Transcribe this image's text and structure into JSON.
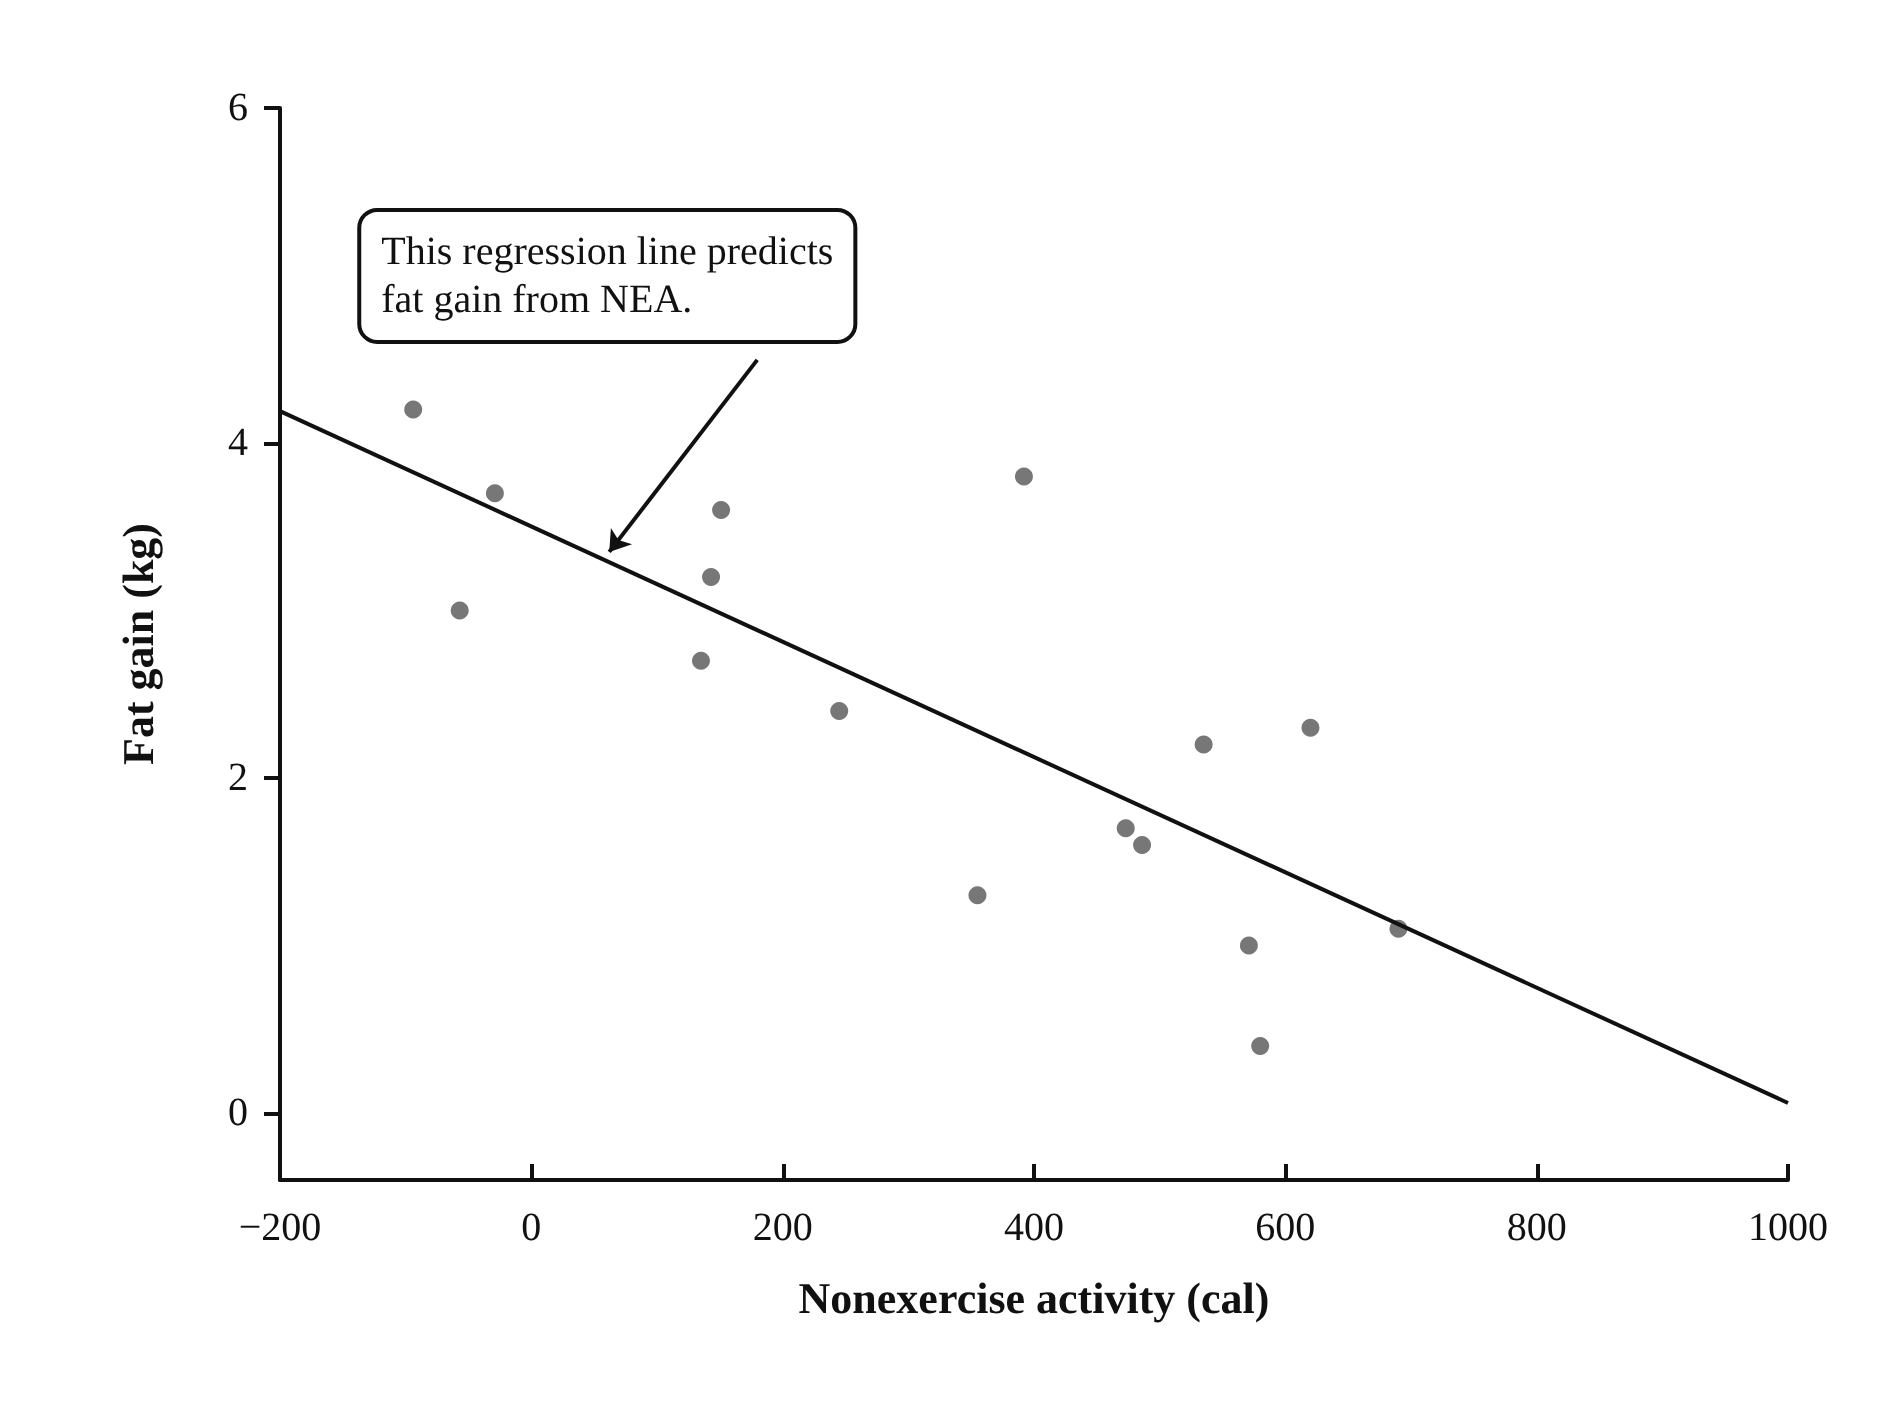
{
  "chart_data": {
    "type": "scatter",
    "xlabel": "Nonexercise activity (cal)",
    "ylabel": "Fat gain (kg)",
    "x": [
      -94,
      -57,
      -29,
      135,
      143,
      151,
      245,
      355,
      392,
      473,
      486,
      535,
      571,
      580,
      620,
      690
    ],
    "series": [
      {
        "color": "#555555",
        "marker": "circle",
        "values": [
          4.2,
          3.0,
          3.7,
          2.7,
          3.2,
          3.6,
          2.4,
          1.3,
          3.8,
          1.7,
          1.6,
          2.2,
          1.0,
          0.4,
          2.3,
          1.1
        ]
      },
      {
        "type": "line",
        "color": "#111111",
        "x": [
          -200,
          1000
        ],
        "values": [
          4.19,
          0.06
        ]
      }
    ],
    "annotations": [
      {
        "text": "This regression line predicts\nfat gain from NEA.",
        "x": 62,
        "y": 3.35
      }
    ],
    "xlim": [
      -200,
      1000
    ],
    "xticks": [
      {
        "value": -200,
        "label": "−200"
      },
      0,
      200,
      400,
      600,
      800,
      1000
    ],
    "ylim": [
      -0.4,
      6
    ],
    "yticks": [
      0,
      2,
      4,
      6
    ],
    "grid": false,
    "line_style": "solid"
  }
}
